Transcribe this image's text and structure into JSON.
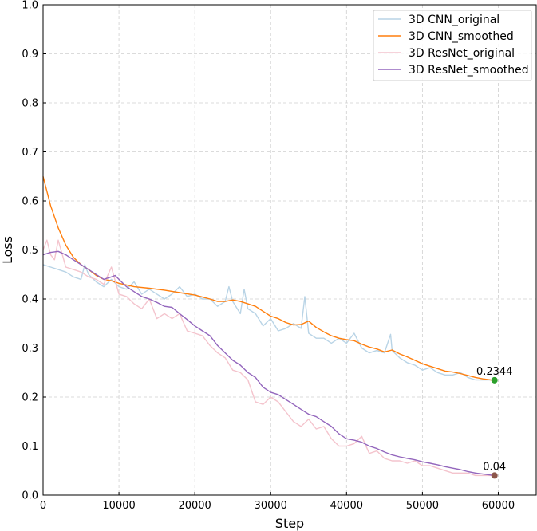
{
  "chart_data": {
    "type": "line",
    "xlabel": "Step",
    "ylabel": "Loss",
    "xlim": [
      0,
      65000
    ],
    "ylim": [
      0,
      1.0
    ],
    "xticks": [
      0,
      10000,
      20000,
      30000,
      40000,
      50000,
      60000
    ],
    "yticks": [
      0.0,
      0.1,
      0.2,
      0.3,
      0.4,
      0.5,
      0.6,
      0.7,
      0.8,
      0.9,
      1.0
    ],
    "grid": true,
    "legend_position": "top-right",
    "series": [
      {
        "name": "3D CNN_original",
        "color": "#b9d4e6",
        "points": [
          [
            0,
            0.47
          ],
          [
            1000,
            0.465
          ],
          [
            2000,
            0.46
          ],
          [
            3000,
            0.455
          ],
          [
            4000,
            0.445
          ],
          [
            5000,
            0.44
          ],
          [
            5500,
            0.47
          ],
          [
            6000,
            0.45
          ],
          [
            7000,
            0.435
          ],
          [
            8000,
            0.425
          ],
          [
            9000,
            0.44
          ],
          [
            10000,
            0.425
          ],
          [
            11000,
            0.42
          ],
          [
            12000,
            0.435
          ],
          [
            13000,
            0.41
          ],
          [
            14000,
            0.42
          ],
          [
            15000,
            0.41
          ],
          [
            16000,
            0.4
          ],
          [
            17000,
            0.41
          ],
          [
            18000,
            0.425
          ],
          [
            19000,
            0.405
          ],
          [
            20000,
            0.41
          ],
          [
            21000,
            0.4
          ],
          [
            22000,
            0.4
          ],
          [
            23000,
            0.385
          ],
          [
            24000,
            0.395
          ],
          [
            24500,
            0.425
          ],
          [
            25000,
            0.395
          ],
          [
            26000,
            0.37
          ],
          [
            26500,
            0.42
          ],
          [
            27000,
            0.38
          ],
          [
            28000,
            0.37
          ],
          [
            29000,
            0.345
          ],
          [
            30000,
            0.36
          ],
          [
            31000,
            0.335
          ],
          [
            32000,
            0.34
          ],
          [
            33000,
            0.35
          ],
          [
            34000,
            0.34
          ],
          [
            34500,
            0.405
          ],
          [
            35000,
            0.33
          ],
          [
            36000,
            0.32
          ],
          [
            37000,
            0.32
          ],
          [
            38000,
            0.31
          ],
          [
            39000,
            0.32
          ],
          [
            40000,
            0.31
          ],
          [
            41000,
            0.33
          ],
          [
            42000,
            0.3
          ],
          [
            43000,
            0.29
          ],
          [
            44000,
            0.295
          ],
          [
            45000,
            0.29
          ],
          [
            45800,
            0.328
          ],
          [
            46000,
            0.295
          ],
          [
            47000,
            0.28
          ],
          [
            48000,
            0.27
          ],
          [
            49000,
            0.265
          ],
          [
            50000,
            0.255
          ],
          [
            51000,
            0.26
          ],
          [
            52000,
            0.25
          ],
          [
            53000,
            0.245
          ],
          [
            54000,
            0.245
          ],
          [
            55000,
            0.25
          ],
          [
            56000,
            0.24
          ],
          [
            57000,
            0.235
          ],
          [
            58000,
            0.235
          ],
          [
            59000,
            0.235
          ],
          [
            59500,
            0.234
          ]
        ]
      },
      {
        "name": "3D CNN_smoothed",
        "color": "#ff7f0e",
        "points": [
          [
            0,
            0.65
          ],
          [
            1000,
            0.59
          ],
          [
            2000,
            0.545
          ],
          [
            3000,
            0.51
          ],
          [
            4000,
            0.485
          ],
          [
            5000,
            0.47
          ],
          [
            6000,
            0.46
          ],
          [
            7000,
            0.448
          ],
          [
            8000,
            0.44
          ],
          [
            9000,
            0.437
          ],
          [
            10000,
            0.432
          ],
          [
            12000,
            0.425
          ],
          [
            14000,
            0.422
          ],
          [
            16000,
            0.418
          ],
          [
            18000,
            0.413
          ],
          [
            20000,
            0.408
          ],
          [
            22000,
            0.4
          ],
          [
            23000,
            0.395
          ],
          [
            24000,
            0.395
          ],
          [
            25000,
            0.398
          ],
          [
            26000,
            0.395
          ],
          [
            27000,
            0.39
          ],
          [
            28000,
            0.385
          ],
          [
            29000,
            0.375
          ],
          [
            30000,
            0.365
          ],
          [
            31000,
            0.36
          ],
          [
            32000,
            0.352
          ],
          [
            33000,
            0.347
          ],
          [
            34000,
            0.348
          ],
          [
            35000,
            0.355
          ],
          [
            36000,
            0.342
          ],
          [
            37000,
            0.333
          ],
          [
            38000,
            0.325
          ],
          [
            39000,
            0.32
          ],
          [
            40000,
            0.317
          ],
          [
            41000,
            0.315
          ],
          [
            42000,
            0.308
          ],
          [
            43000,
            0.302
          ],
          [
            44000,
            0.298
          ],
          [
            45000,
            0.292
          ],
          [
            46000,
            0.296
          ],
          [
            47000,
            0.288
          ],
          [
            48000,
            0.282
          ],
          [
            49000,
            0.275
          ],
          [
            50000,
            0.268
          ],
          [
            51000,
            0.263
          ],
          [
            52000,
            0.258
          ],
          [
            53000,
            0.253
          ],
          [
            54000,
            0.251
          ],
          [
            55000,
            0.248
          ],
          [
            56000,
            0.244
          ],
          [
            57000,
            0.24
          ],
          [
            58000,
            0.237
          ],
          [
            59000,
            0.235
          ],
          [
            59500,
            0.2344
          ]
        ]
      },
      {
        "name": "3D ResNet_original",
        "color": "#f4c4cd",
        "points": [
          [
            0,
            0.5
          ],
          [
            500,
            0.52
          ],
          [
            1000,
            0.49
          ],
          [
            1500,
            0.48
          ],
          [
            2000,
            0.52
          ],
          [
            3000,
            0.465
          ],
          [
            4000,
            0.46
          ],
          [
            5000,
            0.455
          ],
          [
            6000,
            0.445
          ],
          [
            7000,
            0.44
          ],
          [
            8000,
            0.43
          ],
          [
            9000,
            0.465
          ],
          [
            10000,
            0.41
          ],
          [
            11000,
            0.405
          ],
          [
            12000,
            0.39
          ],
          [
            13000,
            0.38
          ],
          [
            14000,
            0.4
          ],
          [
            15000,
            0.36
          ],
          [
            16000,
            0.37
          ],
          [
            17000,
            0.36
          ],
          [
            18000,
            0.37
          ],
          [
            19000,
            0.335
          ],
          [
            20000,
            0.33
          ],
          [
            21000,
            0.325
          ],
          [
            22000,
            0.305
          ],
          [
            23000,
            0.29
          ],
          [
            24000,
            0.28
          ],
          [
            25000,
            0.255
          ],
          [
            26000,
            0.25
          ],
          [
            27000,
            0.235
          ],
          [
            28000,
            0.19
          ],
          [
            29000,
            0.185
          ],
          [
            30000,
            0.2
          ],
          [
            31000,
            0.19
          ],
          [
            32000,
            0.17
          ],
          [
            33000,
            0.15
          ],
          [
            34000,
            0.14
          ],
          [
            35000,
            0.155
          ],
          [
            36000,
            0.135
          ],
          [
            37000,
            0.14
          ],
          [
            38000,
            0.115
          ],
          [
            39000,
            0.1
          ],
          [
            40000,
            0.1
          ],
          [
            41000,
            0.105
          ],
          [
            42000,
            0.12
          ],
          [
            43000,
            0.085
          ],
          [
            44000,
            0.09
          ],
          [
            45000,
            0.075
          ],
          [
            46000,
            0.07
          ],
          [
            47000,
            0.07
          ],
          [
            48000,
            0.065
          ],
          [
            49000,
            0.07
          ],
          [
            50000,
            0.06
          ],
          [
            51000,
            0.06
          ],
          [
            52000,
            0.055
          ],
          [
            53000,
            0.05
          ],
          [
            54000,
            0.045
          ],
          [
            55000,
            0.045
          ],
          [
            56000,
            0.045
          ],
          [
            57000,
            0.04
          ],
          [
            58000,
            0.04
          ],
          [
            59000,
            0.04
          ],
          [
            59500,
            0.04
          ]
        ]
      },
      {
        "name": "3D ResNet_smoothed",
        "color": "#9467bd",
        "points": [
          [
            0,
            0.49
          ],
          [
            1000,
            0.495
          ],
          [
            2000,
            0.497
          ],
          [
            3000,
            0.49
          ],
          [
            4000,
            0.48
          ],
          [
            5000,
            0.47
          ],
          [
            6000,
            0.46
          ],
          [
            7000,
            0.45
          ],
          [
            8000,
            0.44
          ],
          [
            9000,
            0.445
          ],
          [
            9500,
            0.448
          ],
          [
            10000,
            0.44
          ],
          [
            11000,
            0.425
          ],
          [
            12000,
            0.415
          ],
          [
            13000,
            0.405
          ],
          [
            14000,
            0.4
          ],
          [
            15000,
            0.393
          ],
          [
            16000,
            0.385
          ],
          [
            17000,
            0.383
          ],
          [
            18000,
            0.37
          ],
          [
            19000,
            0.358
          ],
          [
            20000,
            0.345
          ],
          [
            21000,
            0.335
          ],
          [
            22000,
            0.325
          ],
          [
            23000,
            0.305
          ],
          [
            24000,
            0.29
          ],
          [
            25000,
            0.275
          ],
          [
            26000,
            0.265
          ],
          [
            27000,
            0.25
          ],
          [
            28000,
            0.24
          ],
          [
            29000,
            0.22
          ],
          [
            30000,
            0.21
          ],
          [
            31000,
            0.205
          ],
          [
            32000,
            0.195
          ],
          [
            33000,
            0.185
          ],
          [
            34000,
            0.175
          ],
          [
            35000,
            0.165
          ],
          [
            36000,
            0.16
          ],
          [
            37000,
            0.15
          ],
          [
            38000,
            0.14
          ],
          [
            39000,
            0.125
          ],
          [
            40000,
            0.115
          ],
          [
            41000,
            0.112
          ],
          [
            42000,
            0.108
          ],
          [
            43000,
            0.1
          ],
          [
            44000,
            0.095
          ],
          [
            45000,
            0.088
          ],
          [
            46000,
            0.082
          ],
          [
            47000,
            0.078
          ],
          [
            48000,
            0.075
          ],
          [
            49000,
            0.072
          ],
          [
            50000,
            0.068
          ],
          [
            51000,
            0.065
          ],
          [
            52000,
            0.062
          ],
          [
            53000,
            0.058
          ],
          [
            54000,
            0.055
          ],
          [
            55000,
            0.052
          ],
          [
            56000,
            0.048
          ],
          [
            57000,
            0.045
          ],
          [
            58000,
            0.043
          ],
          [
            59000,
            0.041
          ],
          [
            59500,
            0.04
          ]
        ]
      }
    ],
    "annotations": [
      {
        "x": 59500,
        "y": 0.2344,
        "label": "0.2344",
        "color": "#2ca02c"
      },
      {
        "x": 59500,
        "y": 0.04,
        "label": "0.04",
        "color": "#8c564b"
      }
    ]
  }
}
